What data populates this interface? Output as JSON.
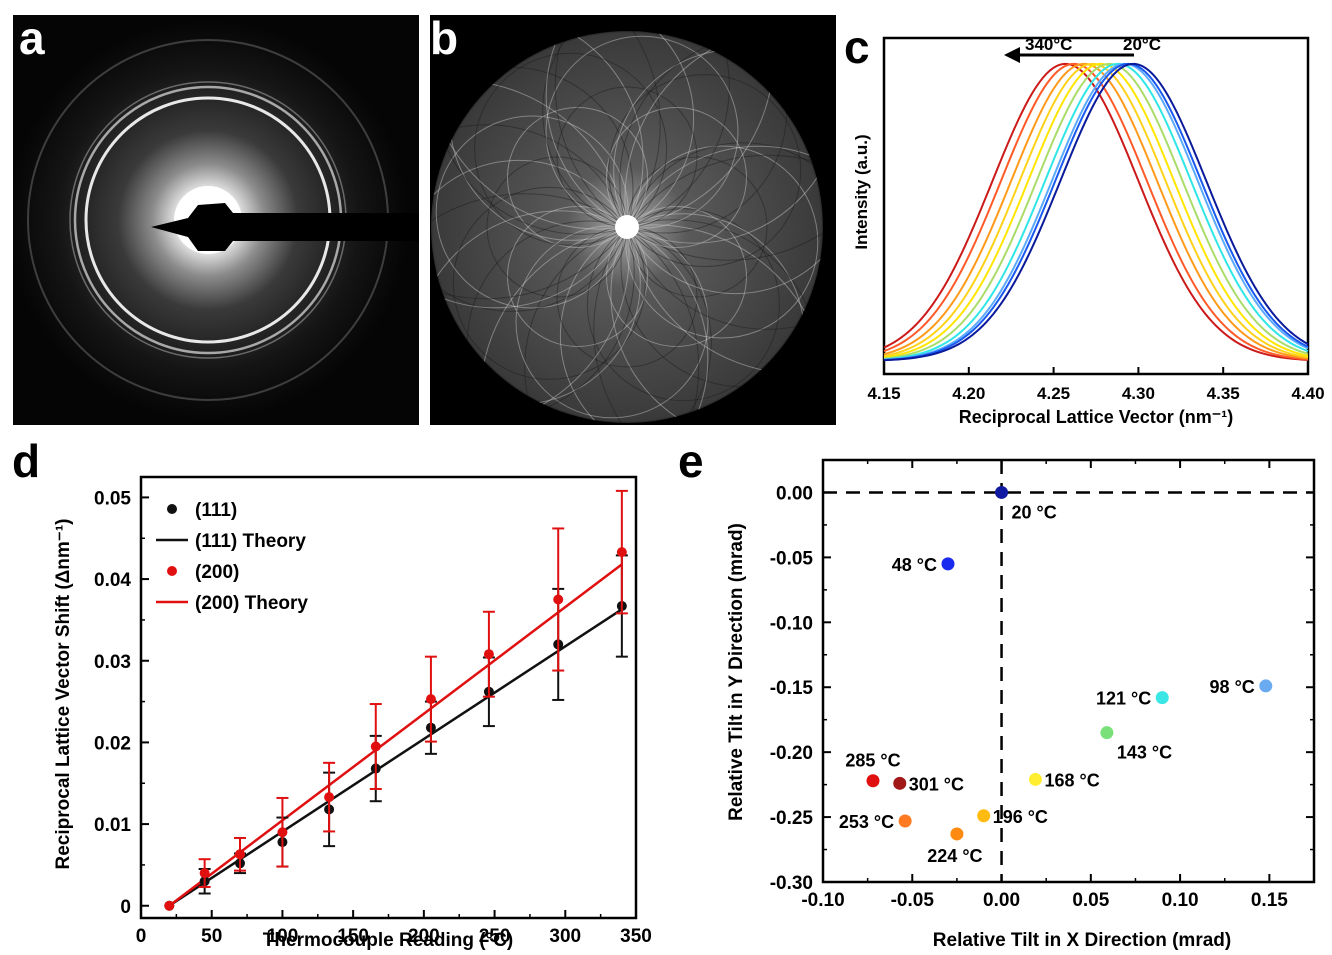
{
  "panels": {
    "a": {
      "label": "a"
    },
    "b": {
      "label": "b"
    },
    "c": {
      "label": "c"
    },
    "d": {
      "label": "d"
    },
    "e": {
      "label": "e"
    }
  },
  "chart_data": [
    {
      "id": "c",
      "type": "line",
      "xlabel": "Reciprocal Lattice Vector (nm⁻¹)",
      "ylabel": "Intensity (a.u.)",
      "xlim": [
        4.15,
        4.4
      ],
      "ylim": [
        0,
        1.04
      ],
      "xticks": [
        "4.15",
        "4.20",
        "4.25",
        "4.30",
        "4.35",
        "4.40"
      ],
      "annotations": {
        "left": "340°C",
        "right": "20°C"
      },
      "series_colors": [
        "#cc1a1a",
        "#ff5a28",
        "#ff9a1a",
        "#ffd21a",
        "#ffe600",
        "#aadc6a",
        "#30e6e6",
        "#5aaaff",
        "#1a5af0",
        "#0a1a9a"
      ],
      "peak_centers": [
        4.257,
        4.262,
        4.268,
        4.273,
        4.278,
        4.283,
        4.288,
        4.292,
        4.294,
        4.297
      ],
      "peak_sigma": 0.043
    },
    {
      "id": "d",
      "type": "scatter",
      "xlabel": "Thermocouple Reading (°C)",
      "ylabel": "Reciprocal Lattice Vector Shift (Δnm⁻¹)",
      "xlim": [
        0,
        350
      ],
      "ylim": [
        -0.0015,
        0.0525
      ],
      "xticks": [
        0,
        50,
        100,
        150,
        200,
        250,
        300,
        350
      ],
      "yticks": [
        0,
        0.01,
        0.02,
        0.03,
        0.04,
        0.05
      ],
      "ytick_labels": [
        "0",
        "0.01",
        "0.02",
        "0.03",
        "0.04",
        "0.05"
      ],
      "legend": [
        "(111)",
        "(111) Theory",
        "(200)",
        "(200) Theory"
      ],
      "legend_position": "top-left",
      "series": [
        {
          "name": "(111)",
          "color": "#111111",
          "x": [
            20,
            45,
            70,
            100,
            133,
            166,
            205,
            246,
            295,
            340
          ],
          "y": [
            0,
            0.003,
            0.0052,
            0.0078,
            0.0118,
            0.0168,
            0.0218,
            0.0262,
            0.032,
            0.0367
          ],
          "err": [
            0,
            0.0015,
            0.0012,
            0.003,
            0.0045,
            0.004,
            0.0032,
            0.0042,
            0.0068,
            0.0062
          ]
        },
        {
          "name": "(200)",
          "color": "#e01010",
          "x": [
            20,
            45,
            70,
            100,
            133,
            166,
            205,
            246,
            295,
            340
          ],
          "y": [
            0,
            0.004,
            0.0063,
            0.009,
            0.0133,
            0.0195,
            0.0253,
            0.0308,
            0.0375,
            0.0433
          ],
          "err": [
            0,
            0.0017,
            0.002,
            0.0042,
            0.0042,
            0.0052,
            0.0052,
            0.0052,
            0.0087,
            0.0075
          ]
        },
        {
          "name": "(111) Theory",
          "color": "#111111",
          "x": [
            20,
            340
          ],
          "y": [
            0,
            0.0363
          ]
        },
        {
          "name": "(200) Theory",
          "color": "#e01010",
          "x": [
            20,
            340
          ],
          "y": [
            0,
            0.0418
          ]
        }
      ]
    },
    {
      "id": "e",
      "type": "scatter",
      "xlabel": "Relative Tilt in X Direction (mrad)",
      "ylabel": "Relative Tilt in Y Direction (mrad)",
      "xlim": [
        -0.1,
        0.175
      ],
      "ylim": [
        -0.3,
        0.025
      ],
      "xticks": [
        -0.1,
        -0.05,
        0.0,
        0.05,
        0.1,
        0.15
      ],
      "xtick_labels": [
        "-0.10",
        "-0.05",
        "0.00",
        "0.05",
        "0.10",
        "0.15"
      ],
      "yticks": [
        0.0,
        -0.05,
        -0.1,
        -0.15,
        -0.2,
        -0.25,
        -0.3
      ],
      "ytick_labels": [
        "0.00",
        "-0.05",
        "-0.10",
        "-0.15",
        "-0.20",
        "-0.25",
        "-0.30"
      ],
      "points": [
        {
          "label": "20 °C",
          "x": 0.0,
          "y": 0.0,
          "color": "#101aa0",
          "anchor": "below-right"
        },
        {
          "label": "48 °C",
          "x": -0.03,
          "y": -0.055,
          "color": "#1a2aee",
          "anchor": "left"
        },
        {
          "label": "98 °C",
          "x": 0.148,
          "y": -0.149,
          "color": "#6aaaf0",
          "anchor": "left"
        },
        {
          "label": "121 °C",
          "x": 0.09,
          "y": -0.158,
          "color": "#3ae6e6",
          "anchor": "left"
        },
        {
          "label": "143 °C",
          "x": 0.059,
          "y": -0.185,
          "color": "#7ae07a",
          "anchor": "below-right"
        },
        {
          "label": "168 °C",
          "x": 0.019,
          "y": -0.221,
          "color": "#ffee30",
          "anchor": "right"
        },
        {
          "label": "196 °C",
          "x": -0.01,
          "y": -0.249,
          "color": "#ffbb10",
          "anchor": "right"
        },
        {
          "label": "224 °C",
          "x": -0.025,
          "y": -0.263,
          "color": "#ff8a10",
          "anchor": "below"
        },
        {
          "label": "253 °C",
          "x": -0.054,
          "y": -0.253,
          "color": "#ff7a20",
          "anchor": "left"
        },
        {
          "label": "285 °C",
          "x": -0.072,
          "y": -0.222,
          "color": "#e01010",
          "anchor": "above"
        },
        {
          "label": "301 °C",
          "x": -0.057,
          "y": -0.224,
          "color": "#a01818",
          "anchor": "right"
        }
      ]
    }
  ]
}
